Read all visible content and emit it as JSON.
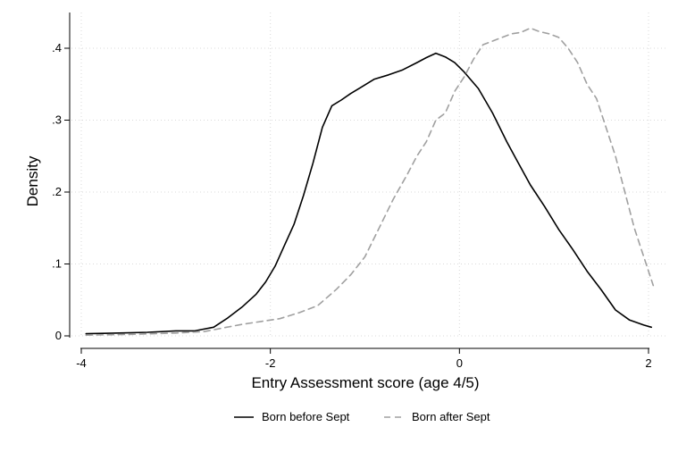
{
  "chart_data": {
    "type": "line",
    "title": "",
    "xlabel": "Entry Assessment score (age 4/5)",
    "ylabel": "Density",
    "xlim": [
      -4,
      2
    ],
    "ylim": [
      0,
      0.4
    ],
    "xticks": [
      -4,
      -2,
      0,
      2
    ],
    "xtick_labels": [
      "-4",
      "-2",
      "0",
      "2"
    ],
    "yticks": [
      0,
      0.1,
      0.2,
      0.3,
      0.4
    ],
    "ytick_labels": [
      "0",
      ".1",
      ".2",
      ".3",
      ".4"
    ],
    "grid": true,
    "legend_position": "bottom",
    "series": [
      {
        "name": "Born before Sept",
        "style": "solid",
        "color": "#000000",
        "x": [
          -3.95,
          -3.6,
          -3.3,
          -3.0,
          -2.8,
          -2.6,
          -2.45,
          -2.3,
          -2.15,
          -2.05,
          -1.95,
          -1.85,
          -1.75,
          -1.65,
          -1.55,
          -1.45,
          -1.35,
          -1.25,
          -1.15,
          -1.05,
          -0.9,
          -0.75,
          -0.6,
          -0.45,
          -0.35,
          -0.25,
          -0.15,
          -0.05,
          0.05,
          0.2,
          0.35,
          0.5,
          0.6,
          0.75,
          0.9,
          1.05,
          1.2,
          1.35,
          1.5,
          1.65,
          1.8,
          1.95,
          2.03
        ],
        "y": [
          0.003,
          0.004,
          0.005,
          0.007,
          0.007,
          0.012,
          0.025,
          0.04,
          0.058,
          0.075,
          0.097,
          0.126,
          0.155,
          0.195,
          0.24,
          0.29,
          0.32,
          0.328,
          0.337,
          0.345,
          0.357,
          0.363,
          0.37,
          0.38,
          0.387,
          0.393,
          0.388,
          0.38,
          0.367,
          0.344,
          0.31,
          0.27,
          0.246,
          0.21,
          0.18,
          0.148,
          0.12,
          0.09,
          0.064,
          0.036,
          0.022,
          0.015,
          0.012
        ]
      },
      {
        "name": "Born after Sept",
        "style": "dashed",
        "color": "#a0a0a0",
        "x": [
          -3.95,
          -3.5,
          -3.0,
          -2.7,
          -2.5,
          -2.3,
          -2.1,
          -1.9,
          -1.7,
          -1.5,
          -1.3,
          -1.15,
          -1.0,
          -0.85,
          -0.7,
          -0.55,
          -0.45,
          -0.35,
          -0.25,
          -0.15,
          -0.05,
          0.05,
          0.15,
          0.25,
          0.35,
          0.45,
          0.55,
          0.65,
          0.75,
          0.85,
          0.95,
          1.05,
          1.15,
          1.25,
          1.35,
          1.45,
          1.55,
          1.65,
          1.75,
          1.85,
          1.95,
          2.05
        ],
        "y": [
          0.001,
          0.002,
          0.004,
          0.006,
          0.011,
          0.016,
          0.02,
          0.024,
          0.032,
          0.042,
          0.065,
          0.085,
          0.11,
          0.15,
          0.19,
          0.225,
          0.25,
          0.27,
          0.3,
          0.31,
          0.34,
          0.36,
          0.385,
          0.405,
          0.41,
          0.415,
          0.42,
          0.422,
          0.428,
          0.423,
          0.42,
          0.415,
          0.4,
          0.38,
          0.35,
          0.33,
          0.29,
          0.25,
          0.2,
          0.15,
          0.11,
          0.07
        ]
      }
    ]
  }
}
